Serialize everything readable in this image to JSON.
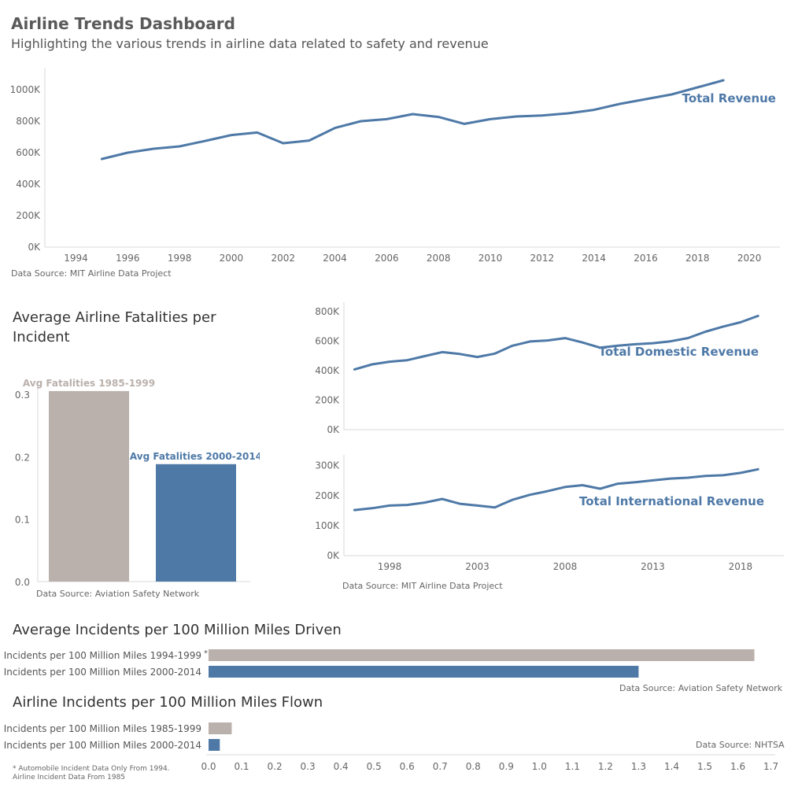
{
  "dashboard": {
    "title": "Airline Trends Dashboard",
    "subtitle": "Highlighting the various trends in airline data related to safety and revenue"
  },
  "colors": {
    "blue": "#4e79a7",
    "gray": "#bab0ac",
    "axis": "#d9d9d9"
  },
  "sources": {
    "total_revenue": "Data Source: MIT Airline Data Project",
    "fatalities": "Data Source: Aviation Safety Network",
    "dom_intl": "Data Source: MIT Airline Data Project",
    "driven": "Data Source: Aviation Safety Network",
    "flown": "Data Source: NHTSA"
  },
  "titles": {
    "fatalities": "Average Airline Fatalities per Incident",
    "driven": "Average Incidents per 100 Million Miles Driven",
    "flown": "Airline Incidents per 100 Million Miles Flown"
  },
  "footnote": {
    "line1": "* Automobile Incident Data Only From 1994.",
    "line2": "Airline Incident Data From 1985"
  },
  "chart_data": [
    {
      "type": "line",
      "id": "total_revenue",
      "series": [
        {
          "name": "Total Revenue",
          "x": [
            1995,
            1996,
            1997,
            1998,
            1999,
            2000,
            2001,
            2002,
            2003,
            2004,
            2005,
            2006,
            2007,
            2008,
            2009,
            2010,
            2011,
            2012,
            2013,
            2014,
            2015,
            2016,
            2017,
            2018,
            2019
          ],
          "values": [
            560,
            600,
            625,
            640,
            675,
            712,
            728,
            660,
            677,
            757,
            800,
            813,
            845,
            827,
            783,
            813,
            830,
            836,
            850,
            872,
            910,
            940,
            970,
            1015,
            1060
          ]
        }
      ],
      "units": "K",
      "ylim": [
        0,
        1100
      ],
      "yticks": [
        0,
        200,
        400,
        600,
        800,
        1000
      ],
      "ytick_labels": [
        "0K",
        "200K",
        "400K",
        "600K",
        "800K",
        "1000K"
      ],
      "xlim": [
        1992.8,
        2021
      ],
      "xticks": [
        1994,
        1996,
        1998,
        2000,
        2002,
        2004,
        2006,
        2008,
        2010,
        2012,
        2014,
        2016,
        2018,
        2020
      ],
      "xtick_labels": [
        "1994",
        "1996",
        "1998",
        "2000",
        "2002",
        "2004",
        "2006",
        "2008",
        "2010",
        "2012",
        "2014",
        "2016",
        "2018",
        "2020"
      ],
      "grid": false
    },
    {
      "type": "bar",
      "id": "fatalities",
      "categories": [
        "Avg Fatalities 1985-1999",
        "Avg Fatalities 2000-2014"
      ],
      "values": [
        0.305,
        0.188
      ],
      "ylim": [
        0,
        0.32
      ],
      "yticks": [
        0,
        0.1,
        0.2,
        0.3
      ],
      "ytick_labels": [
        "0.0",
        "0.1",
        "0.2",
        "0.3"
      ],
      "colors": [
        "#bab0ac",
        "#4e79a7"
      ],
      "grid": false
    },
    {
      "type": "line",
      "id": "domestic_revenue",
      "series": [
        {
          "name": "Total Domestic Revenue",
          "x": [
            1996,
            1997,
            1998,
            1999,
            2000,
            2001,
            2002,
            2003,
            2004,
            2005,
            2006,
            2007,
            2008,
            2009,
            2010,
            2011,
            2012,
            2013,
            2014,
            2015,
            2016,
            2017,
            2018,
            2019
          ],
          "values": [
            408,
            442,
            460,
            470,
            498,
            525,
            512,
            492,
            515,
            568,
            597,
            604,
            620,
            590,
            555,
            568,
            578,
            585,
            598,
            620,
            663,
            697,
            727,
            770
          ]
        }
      ],
      "units": "K",
      "ylim": [
        0,
        820
      ],
      "yticks": [
        0,
        200,
        400,
        600,
        800
      ],
      "ytick_labels": [
        "0K",
        "200K",
        "400K",
        "600K",
        "800K"
      ],
      "xlim": [
        1995.4,
        2020.2
      ],
      "grid": false
    },
    {
      "type": "line",
      "id": "international_revenue",
      "series": [
        {
          "name": "Total International Revenue",
          "x": [
            1996,
            1997,
            1998,
            1999,
            2000,
            2001,
            2002,
            2003,
            2004,
            2005,
            2006,
            2007,
            2008,
            2009,
            2010,
            2011,
            2012,
            2013,
            2014,
            2015,
            2016,
            2017,
            2018,
            2019
          ],
          "values": [
            152,
            158,
            167,
            169,
            177,
            189,
            173,
            167,
            161,
            186,
            203,
            215,
            229,
            235,
            223,
            240,
            245,
            251,
            257,
            260,
            266,
            268,
            276,
            288
          ]
        }
      ],
      "units": "K",
      "ylim": [
        0,
        315
      ],
      "yticks": [
        0,
        100,
        200,
        300
      ],
      "ytick_labels": [
        "0K",
        "100K",
        "200K",
        "300K"
      ],
      "xlim": [
        1995.4,
        2020.2
      ],
      "xticks": [
        1998,
        2003,
        2008,
        2013,
        2018
      ],
      "xtick_labels": [
        "1998",
        "2003",
        "2008",
        "2013",
        "2018"
      ],
      "grid": false
    },
    {
      "type": "bar",
      "id": "driven",
      "orientation": "horizontal",
      "categories": [
        "Incidents per 100 Million Miles 1994-1999",
        "Incidents per 100 Million Miles 2000-2014"
      ],
      "footnote_marker": "*",
      "values": [
        1.65,
        1.3
      ],
      "colors": [
        "#bab0ac",
        "#4e79a7"
      ],
      "xlim": [
        0,
        1.72
      ]
    },
    {
      "type": "bar",
      "id": "flown",
      "orientation": "horizontal",
      "categories": [
        "Incidents per 100 Million Miles 1985-1999",
        "Incidents per 100 Million Miles 2000-2014"
      ],
      "values": [
        0.07,
        0.034
      ],
      "colors": [
        "#bab0ac",
        "#4e79a7"
      ],
      "xlim": [
        0,
        1.72
      ],
      "xticks": [
        0.0,
        0.1,
        0.2,
        0.3,
        0.4,
        0.5,
        0.6,
        0.7,
        0.8,
        0.9,
        1.0,
        1.1,
        1.2,
        1.3,
        1.4,
        1.5,
        1.6,
        1.7
      ],
      "xtick_labels": [
        "0.0",
        "0.1",
        "0.2",
        "0.3",
        "0.4",
        "0.5",
        "0.6",
        "0.7",
        "0.8",
        "0.9",
        "1.0",
        "1.1",
        "1.2",
        "1.3",
        "1.4",
        "1.5",
        "1.6",
        "1.7"
      ]
    }
  ]
}
